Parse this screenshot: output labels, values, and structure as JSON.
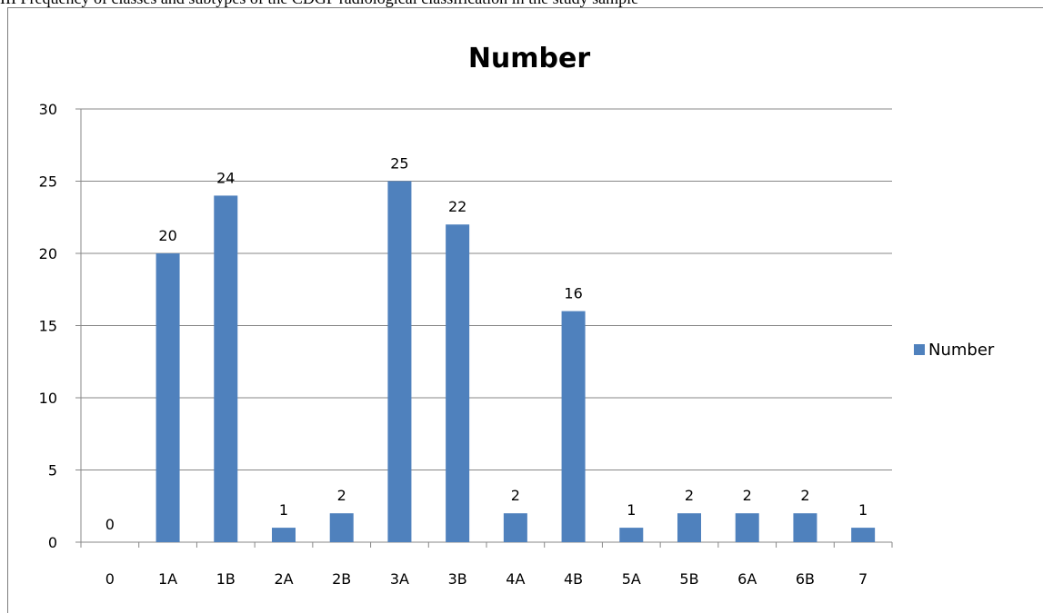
{
  "caption": "III Frequency of classes and subtypes of the CDGP radiological classification in the study sample",
  "chart_data": {
    "type": "bar",
    "title": "Number",
    "categories": [
      "0",
      "1A",
      "1B",
      "2A",
      "2B",
      "3A",
      "3B",
      "4A",
      "4B",
      "5A",
      "5B",
      "6A",
      "6B",
      "7"
    ],
    "series": [
      {
        "name": "Number",
        "values": [
          0,
          20,
          24,
          1,
          2,
          25,
          22,
          2,
          16,
          1,
          2,
          2,
          2,
          1
        ]
      }
    ],
    "ylim": [
      0,
      30
    ],
    "yticks": [
      0,
      5,
      10,
      15,
      20,
      25,
      30
    ],
    "grid": true,
    "legend": "right",
    "bar_color": "#4f81bd",
    "xlabel": "",
    "ylabel": ""
  }
}
